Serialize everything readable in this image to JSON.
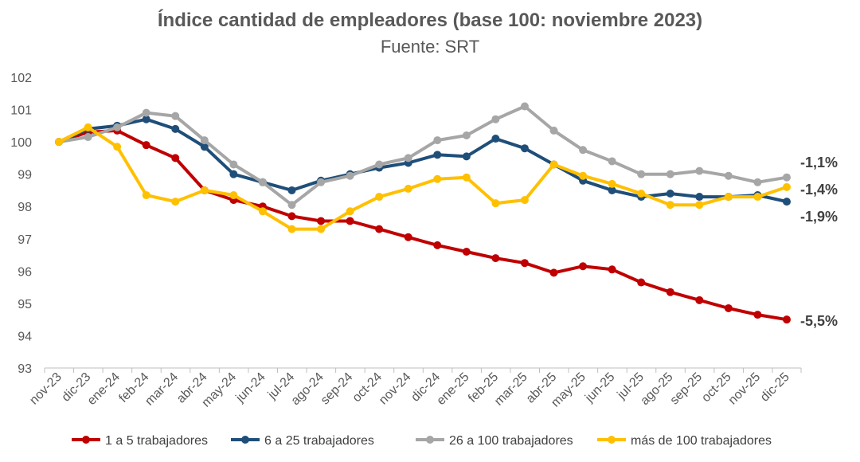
{
  "chart_data": {
    "type": "line",
    "title": "Índice cantidad de empleadores (base 100: noviembre 2023)",
    "subtitle": "Fuente: SRT",
    "ylim": [
      93,
      102
    ],
    "yticks": [
      93,
      94,
      95,
      96,
      97,
      98,
      99,
      100,
      101,
      102
    ],
    "grid": false,
    "legend_position": "bottom",
    "categories": [
      "nov-23",
      "dic-23",
      "ene-24",
      "feb-24",
      "mar-24",
      "abr-24",
      "may-24",
      "jun-24",
      "jul-24",
      "ago-24",
      "sep-24",
      "oct-24",
      "nov-24",
      "dic-24",
      "ene-25",
      "feb-25",
      "mar-25",
      "abr-25",
      "may-25",
      "jun-25",
      "jul-25",
      "ago-25",
      "sep-25",
      "oct-25",
      "nov-25",
      "dic-25"
    ],
    "series": [
      {
        "name": "1 a 5 trabajadores",
        "color": "#C00000",
        "end_label": "-5,5%",
        "values": [
          100.0,
          100.3,
          100.35,
          99.9,
          99.5,
          98.5,
          98.2,
          98.0,
          97.7,
          97.55,
          97.55,
          97.3,
          97.05,
          96.8,
          96.6,
          96.4,
          96.25,
          95.95,
          96.15,
          96.05,
          95.65,
          95.35,
          95.1,
          94.85,
          94.65,
          94.5
        ]
      },
      {
        "name": "6 a 25 trabajadores",
        "color": "#1F4E79",
        "end_label": "-1,9%",
        "values": [
          100.0,
          100.4,
          100.5,
          100.7,
          100.4,
          99.85,
          99.0,
          98.75,
          98.5,
          98.8,
          99.0,
          99.2,
          99.35,
          99.6,
          99.55,
          100.1,
          99.8,
          99.3,
          98.8,
          98.5,
          98.3,
          98.4,
          98.3,
          98.3,
          98.35,
          98.15
        ]
      },
      {
        "name": "26 a 100 trabajadores",
        "color": "#A6A6A6",
        "end_label": "-1,1%",
        "values": [
          100.0,
          100.15,
          100.45,
          100.9,
          100.8,
          100.05,
          99.3,
          98.75,
          98.05,
          98.75,
          98.95,
          99.3,
          99.5,
          100.05,
          100.2,
          100.7,
          101.1,
          100.35,
          99.75,
          99.4,
          99.0,
          99.0,
          99.1,
          98.95,
          98.75,
          98.9
        ]
      },
      {
        "name": "más de 100 trabajadores",
        "color": "#FFC000",
        "end_label": "-1,4%",
        "values": [
          100.0,
          100.45,
          99.85,
          98.35,
          98.15,
          98.5,
          98.35,
          97.85,
          97.3,
          97.3,
          97.85,
          98.3,
          98.55,
          98.85,
          98.9,
          98.1,
          98.2,
          99.3,
          98.95,
          98.7,
          98.4,
          98.05,
          98.05,
          98.3,
          98.3,
          98.6
        ]
      }
    ]
  }
}
